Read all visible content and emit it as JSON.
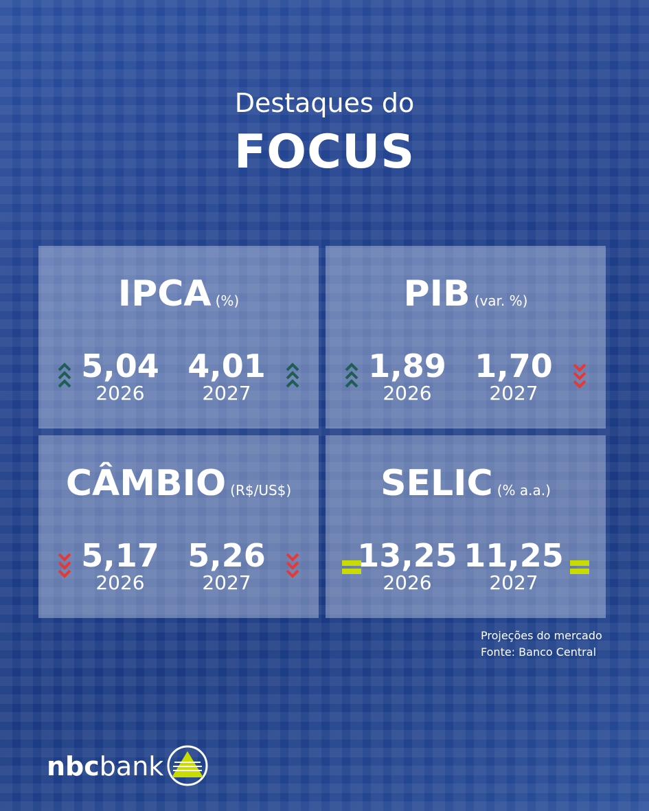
{
  "header": {
    "line1": "Destaques do",
    "title": "FOCUS"
  },
  "cards": [
    {
      "title": "IPCA",
      "unit": "(%)",
      "items": [
        {
          "value": "5,04",
          "year": "2026",
          "trend": "up"
        },
        {
          "value": "4,01",
          "year": "2027",
          "trend": "up"
        }
      ]
    },
    {
      "title": "PIB",
      "unit": "(var. %)",
      "items": [
        {
          "value": "1,89",
          "year": "2026",
          "trend": "up"
        },
        {
          "value": "1,70",
          "year": "2027",
          "trend": "down"
        }
      ]
    },
    {
      "title": "CÂMBIO",
      "unit": "(R$/US$)",
      "items": [
        {
          "value": "5,17",
          "year": "2026",
          "trend": "down"
        },
        {
          "value": "5,26",
          "year": "2027",
          "trend": "down"
        }
      ]
    },
    {
      "title": "SELIC",
      "unit": "(% a.a.)",
      "items": [
        {
          "value": "13,25",
          "year": "2026",
          "trend": "equal"
        },
        {
          "value": "11,25",
          "year": "2027",
          "trend": "equal"
        }
      ]
    }
  ],
  "footer": {
    "note1": "Projeções do mercado",
    "note2": "Fonte: Banco Central"
  },
  "logo": {
    "bold": "nbc",
    "rest": "bank"
  }
}
